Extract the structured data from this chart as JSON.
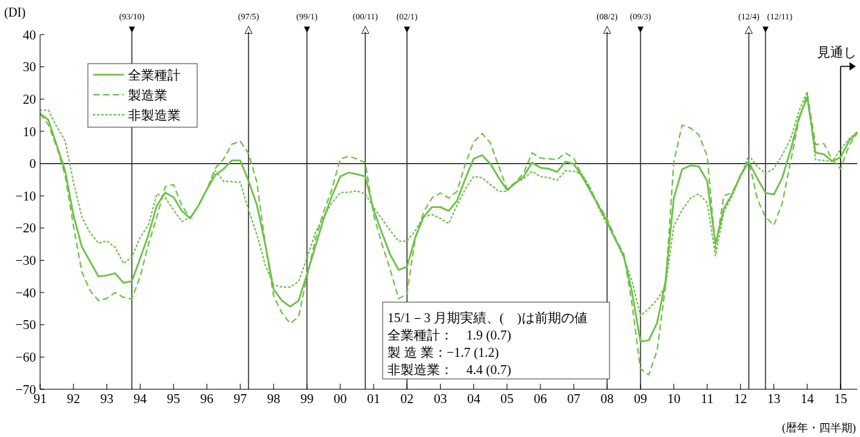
{
  "chart_data": {
    "type": "line",
    "ylabel": "(DI)",
    "xlabel": "(暦年・四半期)",
    "x": [
      1991,
      1991.25,
      1991.5,
      1991.75,
      1992,
      1992.25,
      1992.5,
      1992.75,
      1993,
      1993.25,
      1993.5,
      1993.75,
      1994,
      1994.25,
      1994.5,
      1994.75,
      1995,
      1995.25,
      1995.5,
      1995.75,
      1996,
      1996.25,
      1996.5,
      1996.75,
      1997,
      1997.25,
      1997.5,
      1997.75,
      1998,
      1998.25,
      1998.5,
      1998.75,
      1999,
      1999.25,
      1999.5,
      1999.75,
      2000,
      2000.25,
      2000.5,
      2000.75,
      2001,
      2001.25,
      2001.5,
      2001.75,
      2002,
      2002.25,
      2002.5,
      2002.75,
      2003,
      2003.25,
      2003.5,
      2003.75,
      2004,
      2004.25,
      2004.5,
      2004.75,
      2005,
      2005.25,
      2005.5,
      2005.75,
      2006,
      2006.25,
      2006.5,
      2006.75,
      2007,
      2007.25,
      2007.5,
      2007.75,
      2008,
      2008.25,
      2008.5,
      2008.75,
      2009,
      2009.25,
      2009.5,
      2009.75,
      2010,
      2010.25,
      2010.5,
      2010.75,
      2011,
      2011.25,
      2011.5,
      2011.75,
      2012,
      2012.25,
      2012.5,
      2012.75,
      2013,
      2013.25,
      2013.5,
      2013.75,
      2014,
      2014.25,
      2014.5,
      2014.75,
      2015,
      2015.25,
      2015.5
    ],
    "series": [
      {
        "name": "全業種計",
        "color": "#6cbf45",
        "line_style": "solid",
        "values": [
          15.5,
          13.5,
          5.6,
          -2.2,
          -16,
          -25.8,
          -30.4,
          -35,
          -34.7,
          -34,
          -37,
          -36.5,
          -29.4,
          -22,
          -13,
          -9,
          -10.4,
          -14.7,
          -17,
          -13,
          -8,
          -3.6,
          -1.7,
          1,
          1,
          -5.4,
          -12.9,
          -25,
          -39,
          -42.5,
          -44.4,
          -42.5,
          -34.4,
          -25.8,
          -17.2,
          -10,
          -4,
          -2.8,
          -3.3,
          -4,
          -14.4,
          -21.5,
          -28.3,
          -33,
          -32,
          -22.9,
          -16.5,
          -13.5,
          -13.5,
          -14.7,
          -11.5,
          -4.7,
          1.5,
          2.6,
          -0.1,
          -4.4,
          -8.2,
          -6.1,
          -4,
          0.3,
          -1.3,
          -1.6,
          -2.6,
          0.6,
          -0.1,
          -4,
          -8.6,
          -13.2,
          -17.9,
          -23.6,
          -28.6,
          -40,
          -55.2,
          -54.8,
          -49.4,
          -36.5,
          -10.7,
          -1.8,
          -0.6,
          -0.9,
          -5.4,
          -25,
          -14,
          -9.4,
          -3.6,
          0.5,
          -4.5,
          -9.1,
          -9.6,
          -4.5,
          4.1,
          14.1,
          20.5,
          3.4,
          2.9,
          0.7,
          1.9,
          6.9,
          9.8
        ]
      },
      {
        "name": "製造業",
        "color": "#6cbf45",
        "line_style": "dashed",
        "values": [
          15.5,
          12,
          5,
          -3.6,
          -19.4,
          -33.6,
          -39.4,
          -42.5,
          -41.8,
          -40,
          -41.5,
          -42,
          -35,
          -25,
          -16.5,
          -7.2,
          -6.5,
          -13,
          -17,
          -13,
          -8,
          -1.5,
          1.4,
          6,
          6.9,
          3.1,
          -5.8,
          -25,
          -41,
          -46.4,
          -49.6,
          -47.5,
          -35,
          -23.6,
          -15,
          -7.9,
          1.4,
          2.3,
          1.4,
          0.3,
          -16,
          -25,
          -33,
          -41.9,
          -40.4,
          -22.9,
          -15,
          -10.7,
          -9.1,
          -10.7,
          -8.6,
          -0.1,
          6.7,
          9.3,
          6.4,
          -0.8,
          -7.9,
          -5.8,
          -2.9,
          3.3,
          1.7,
          1.5,
          1.2,
          3.3,
          1.7,
          -3.6,
          -7.9,
          -12.9,
          -17.2,
          -23.2,
          -28,
          -43.7,
          -63.7,
          -65.5,
          -58,
          -38,
          0.6,
          11.9,
          11,
          8.9,
          2.4,
          -26.5,
          -10,
          -9,
          -4,
          1,
          -10.9,
          -16.6,
          -19.1,
          -12.4,
          0.5,
          13.4,
          21.6,
          5.9,
          6.2,
          1.2,
          -1.7,
          5.5,
          9.4
        ]
      },
      {
        "name": "非製造業",
        "color": "#6cbf45",
        "line_style": "dotted",
        "values": [
          16.5,
          16.5,
          11.4,
          7,
          -5.8,
          -16.5,
          -21.5,
          -24.7,
          -24,
          -26,
          -31,
          -29,
          -22.9,
          -19,
          -9.4,
          -10.6,
          -14.4,
          -18,
          -16.6,
          -13,
          -8,
          -2.2,
          -5.5,
          -5.6,
          -5.8,
          -14.4,
          -22,
          -31.5,
          -37.6,
          -38.3,
          -38.3,
          -36.5,
          -29.4,
          -21.5,
          -16.5,
          -12.2,
          -9,
          -8.9,
          -8.5,
          -9.4,
          -13.6,
          -17.2,
          -20.8,
          -24.1,
          -24,
          -20.8,
          -16.5,
          -15.8,
          -17,
          -18.6,
          -12.9,
          -7.9,
          -4,
          -4.4,
          -6.5,
          -8.6,
          -8.6,
          -5.8,
          -4.7,
          -2.4,
          -4,
          -4.4,
          -5.2,
          -2.2,
          -2.4,
          -3.3,
          -7.6,
          -13.9,
          -18.9,
          -23.6,
          -29.3,
          -36.5,
          -47.2,
          -45,
          -42.2,
          -38,
          -19.4,
          -14.4,
          -10.7,
          -9.4,
          -12.2,
          -28.6,
          -15,
          -10,
          -4,
          2.6,
          -0.9,
          -3.1,
          -1.6,
          2.6,
          7.6,
          16.2,
          22.3,
          1.2,
          1,
          0.7,
          4.4,
          7.6,
          9.8
        ]
      }
    ],
    "xlim": [
      1991,
      2015.5
    ],
    "xticks": [
      {
        "value": 1991,
        "label": "91"
      },
      {
        "value": 1992,
        "label": "92"
      },
      {
        "value": 1993,
        "label": "93"
      },
      {
        "value": 1994,
        "label": "94"
      },
      {
        "value": 1995,
        "label": "95"
      },
      {
        "value": 1996,
        "label": "96"
      },
      {
        "value": 1997,
        "label": "97"
      },
      {
        "value": 1998,
        "label": "98"
      },
      {
        "value": 1999,
        "label": "99"
      },
      {
        "value": 2000,
        "label": "00"
      },
      {
        "value": 2001,
        "label": "01"
      },
      {
        "value": 2002,
        "label": "02"
      },
      {
        "value": 2003,
        "label": "03"
      },
      {
        "value": 2004,
        "label": "04"
      },
      {
        "value": 2005,
        "label": "05"
      },
      {
        "value": 2006,
        "label": "06"
      },
      {
        "value": 2007,
        "label": "07"
      },
      {
        "value": 2008,
        "label": "08"
      },
      {
        "value": 2009,
        "label": "09"
      },
      {
        "value": 2010,
        "label": "10"
      },
      {
        "value": 2011,
        "label": "11"
      },
      {
        "value": 2012,
        "label": "12"
      },
      {
        "value": 2013,
        "label": "13"
      },
      {
        "value": 2014,
        "label": "14"
      },
      {
        "value": 2015,
        "label": "15"
      }
    ],
    "ylim": [
      -70,
      40
    ],
    "yticks": [
      -70,
      -60,
      -50,
      -40,
      -30,
      -20,
      -10,
      0,
      10,
      20,
      30,
      40
    ],
    "grid": false,
    "legend": "top left",
    "ref_lines": [
      {
        "axis": "y",
        "value": 0,
        "color": "#000000"
      },
      {
        "axis": "x",
        "value": 1993.75,
        "label": "(93/10) ▼",
        "color": "#333333"
      },
      {
        "axis": "x",
        "value": 1997.25,
        "label": "(97/5) △",
        "color": "#333333"
      },
      {
        "axis": "x",
        "value": 1999,
        "label": "(99/1) ▼",
        "color": "#333333"
      },
      {
        "axis": "x",
        "value": 2000.75,
        "label": "(00/11) △",
        "color": "#333333"
      },
      {
        "axis": "x",
        "value": 2002,
        "label": "(02/1) ▼",
        "color": "#333333"
      },
      {
        "axis": "x",
        "value": 2008,
        "label": "(08/2) △",
        "color": "#333333"
      },
      {
        "axis": "x",
        "value": 2009,
        "label": "(09/3) ▼",
        "color": "#333333"
      },
      {
        "axis": "x",
        "value": 2012.25,
        "label": "(12/4) △",
        "color": "#333333"
      },
      {
        "axis": "x",
        "value": 2012.75,
        "label": "(12/11) ▼",
        "color": "#333333"
      },
      {
        "axis": "x",
        "value": 2015,
        "label": "見通し",
        "color": "#000000"
      }
    ],
    "annotations": [
      "15/1－3 月期実績、(　)は前期の値",
      "全業種計：　1.9 (0.7)",
      "製 造 業：−1.7 (1.2)",
      "非製造業：　4.4 (0.7)"
    ]
  }
}
